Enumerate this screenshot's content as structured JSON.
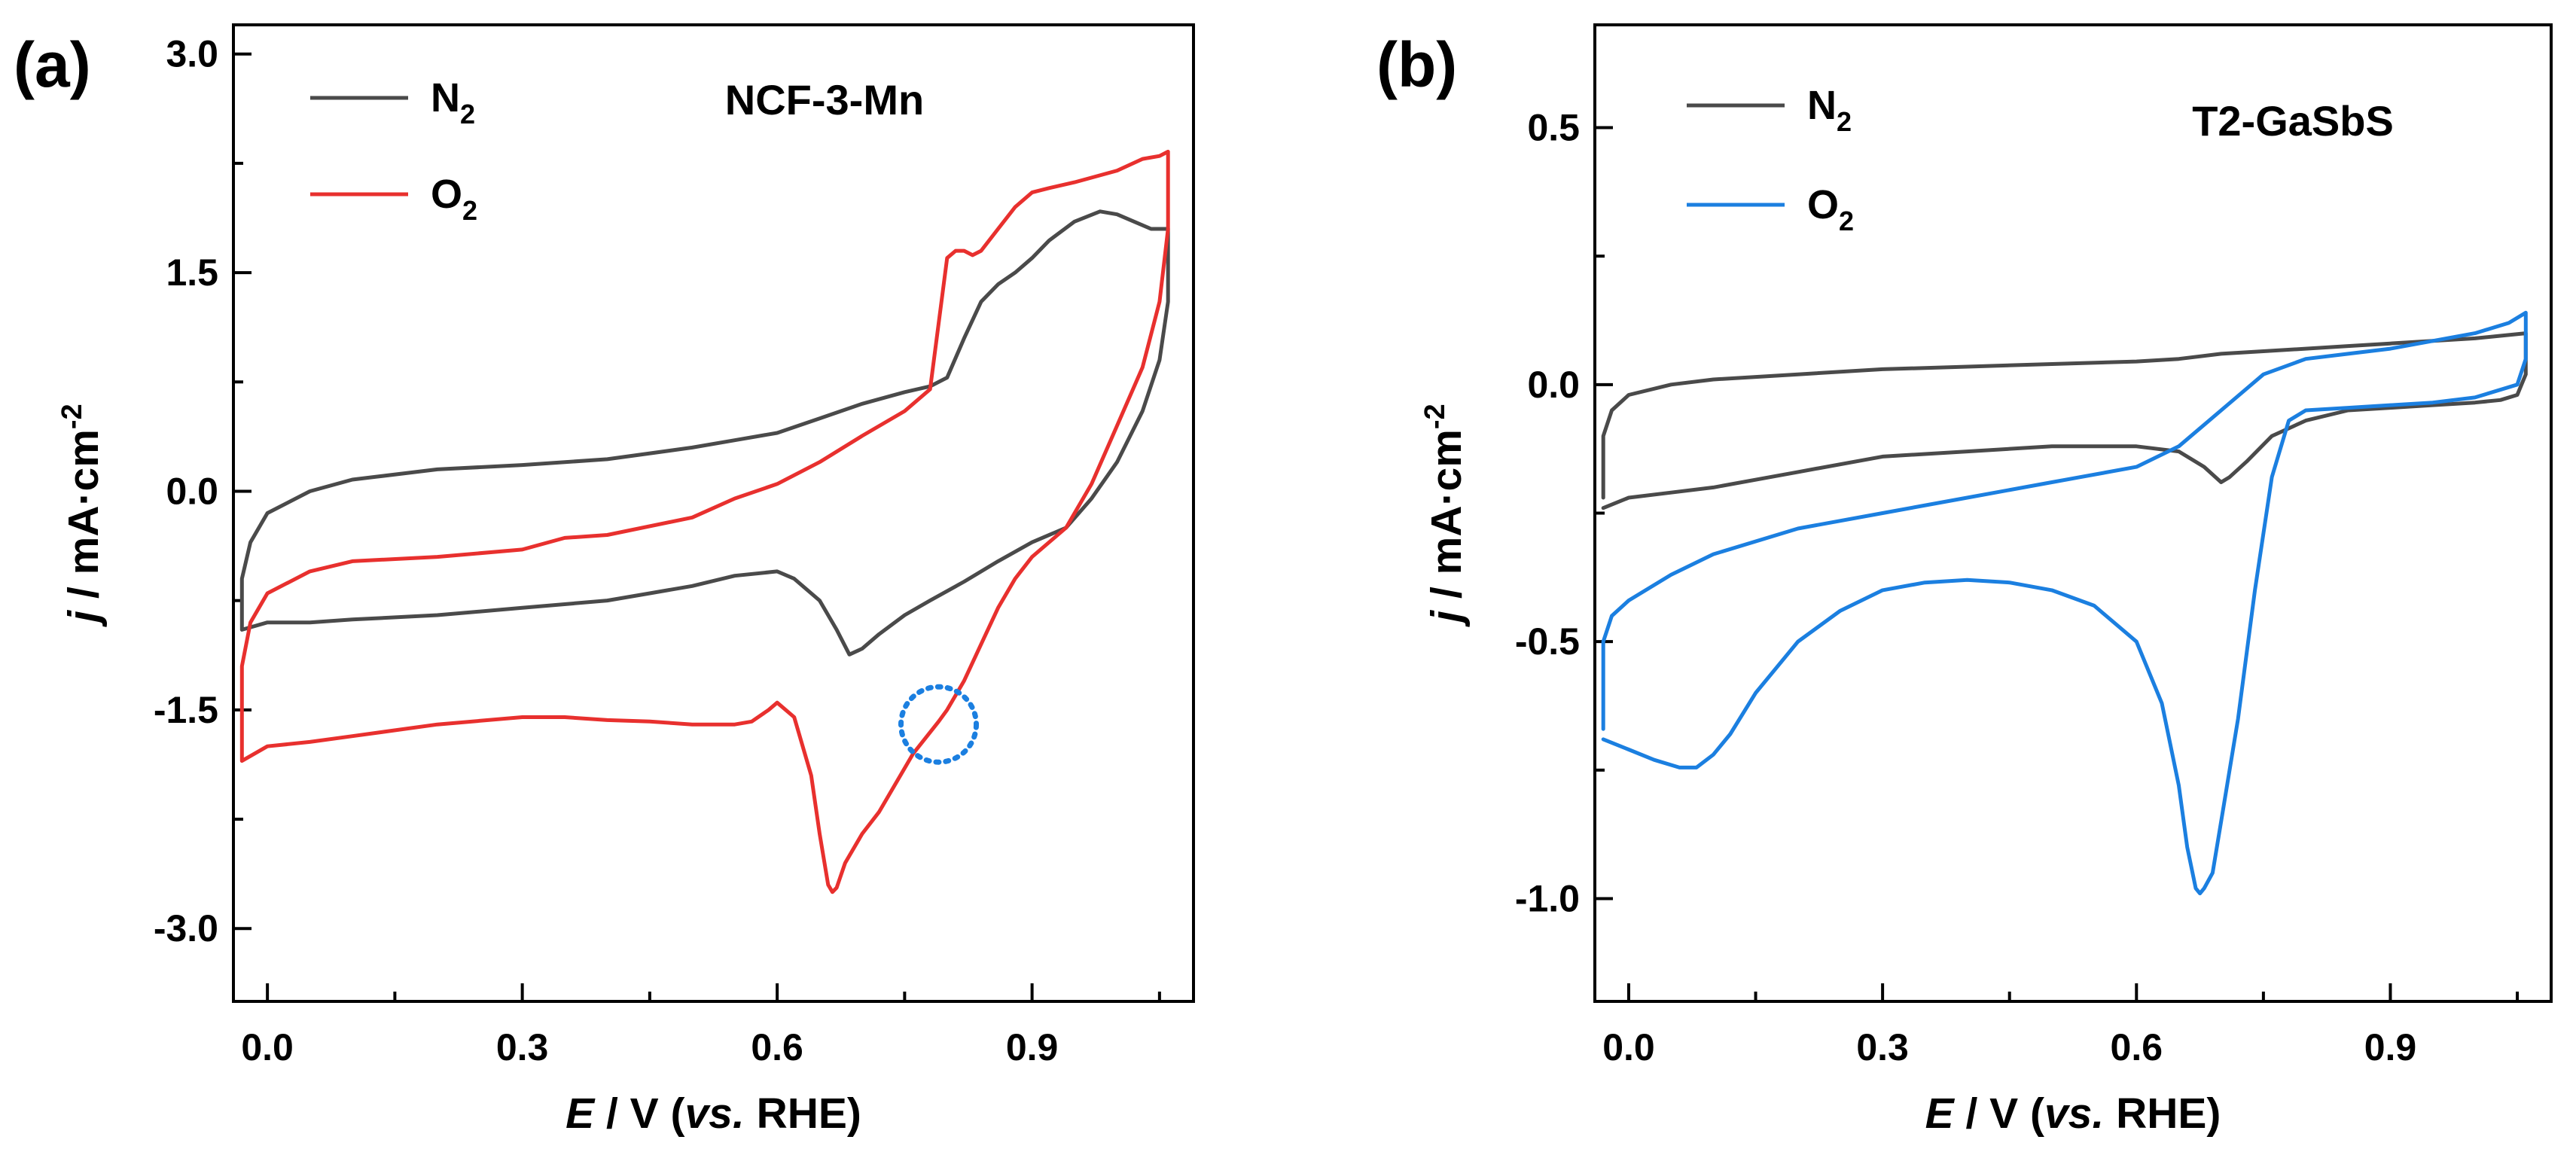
{
  "colors": {
    "n2": "#4a4a4a",
    "o2_a": "#e8302e",
    "o2_b": "#1b7fe0",
    "marker": "#1b7fe0",
    "axis": "#000000"
  },
  "chart_data": [
    {
      "type": "line",
      "panel_label": "(a)",
      "title": "NCF-3-Mn",
      "xlabel": {
        "italic": "E",
        "rest1": " / V (",
        "italic2": "vs.",
        "rest2": " RHE)"
      },
      "ylabel": {
        "italic": "j",
        "rest": " / mA·cm",
        "sup": "-2"
      },
      "xlim": [
        -0.04,
        1.09
      ],
      "ylim": [
        -3.5,
        3.2
      ],
      "xticks": [
        0.0,
        0.3,
        0.6,
        0.9
      ],
      "xtick_labels": [
        "0.0",
        "0.3",
        "0.6",
        "0.9"
      ],
      "yticks": [
        -3.0,
        -1.5,
        0.0,
        1.5,
        3.0
      ],
      "ytick_labels": [
        "-3.0",
        "-1.5",
        "0.0",
        "1.5",
        "3.0"
      ],
      "legend_position": "top-left",
      "annotation": {
        "type": "dotted-circle",
        "x": 0.79,
        "y": -1.6
      },
      "series": [
        {
          "name": "N2",
          "legend_main": "N",
          "legend_sub": "2",
          "color_key": "n2",
          "x": [
            -0.03,
            -0.03,
            -0.02,
            0.0,
            0.05,
            0.1,
            0.2,
            0.3,
            0.4,
            0.5,
            0.55,
            0.6,
            0.65,
            0.7,
            0.75,
            0.78,
            0.8,
            0.82,
            0.84,
            0.86,
            0.88,
            0.9,
            0.92,
            0.95,
            0.98,
            1.0,
            1.02,
            1.04,
            1.06,
            1.06,
            1.05,
            1.03,
            1.0,
            0.97,
            0.94,
            0.9,
            0.86,
            0.82,
            0.78,
            0.75,
            0.72,
            0.7,
            0.685,
            0.67,
            0.65,
            0.62,
            0.6,
            0.55,
            0.5,
            0.45,
            0.4,
            0.3,
            0.2,
            0.1,
            0.05,
            0.0,
            -0.03
          ],
          "y": [
            -0.95,
            -0.6,
            -0.35,
            -0.15,
            0.0,
            0.08,
            0.15,
            0.18,
            0.22,
            0.3,
            0.35,
            0.4,
            0.5,
            0.6,
            0.68,
            0.72,
            0.78,
            1.05,
            1.3,
            1.42,
            1.5,
            1.6,
            1.72,
            1.85,
            1.92,
            1.9,
            1.85,
            1.8,
            1.8,
            1.3,
            0.9,
            0.55,
            0.2,
            -0.05,
            -0.25,
            -0.35,
            -0.48,
            -0.62,
            -0.75,
            -0.85,
            -0.98,
            -1.08,
            -1.12,
            -0.95,
            -0.75,
            -0.6,
            -0.55,
            -0.58,
            -0.65,
            -0.7,
            -0.75,
            -0.8,
            -0.85,
            -0.88,
            -0.9,
            -0.9,
            -0.95
          ]
        },
        {
          "name": "O2",
          "legend_main": "O",
          "legend_sub": "2",
          "color_key": "o2_a",
          "x": [
            -0.03,
            -0.03,
            -0.02,
            0.0,
            0.05,
            0.1,
            0.2,
            0.3,
            0.35,
            0.4,
            0.5,
            0.55,
            0.6,
            0.65,
            0.7,
            0.75,
            0.78,
            0.8,
            0.81,
            0.82,
            0.83,
            0.84,
            0.86,
            0.88,
            0.9,
            0.92,
            0.95,
            1.0,
            1.03,
            1.05,
            1.06,
            1.06,
            1.05,
            1.03,
            1.0,
            0.97,
            0.94,
            0.9,
            0.88,
            0.86,
            0.84,
            0.82,
            0.8,
            0.79,
            0.76,
            0.72,
            0.7,
            0.68,
            0.67,
            0.665,
            0.66,
            0.65,
            0.64,
            0.62,
            0.6,
            0.59,
            0.57,
            0.55,
            0.5,
            0.45,
            0.4,
            0.35,
            0.3,
            0.2,
            0.1,
            0.05,
            0.0,
            -0.03
          ],
          "y": [
            -1.85,
            -1.2,
            -0.9,
            -0.7,
            -0.55,
            -0.48,
            -0.45,
            -0.4,
            -0.32,
            -0.3,
            -0.18,
            -0.05,
            0.05,
            0.2,
            0.38,
            0.55,
            0.7,
            1.6,
            1.65,
            1.65,
            1.62,
            1.65,
            1.8,
            1.95,
            2.05,
            2.08,
            2.12,
            2.2,
            2.28,
            2.3,
            2.33,
            1.8,
            1.3,
            0.85,
            0.45,
            0.05,
            -0.25,
            -0.45,
            -0.6,
            -0.8,
            -1.05,
            -1.3,
            -1.5,
            -1.58,
            -1.8,
            -2.2,
            -2.35,
            -2.55,
            -2.72,
            -2.75,
            -2.7,
            -2.35,
            -1.95,
            -1.55,
            -1.45,
            -1.5,
            -1.58,
            -1.6,
            -1.6,
            -1.58,
            -1.57,
            -1.55,
            -1.55,
            -1.6,
            -1.68,
            -1.72,
            -1.75,
            -1.85
          ]
        }
      ]
    },
    {
      "type": "line",
      "panel_label": "(b)",
      "title": "T2-GaSbS",
      "xlabel": {
        "italic": "E",
        "rest1": " / V (",
        "italic2": "vs.",
        "rest2": " RHE)"
      },
      "ylabel": {
        "italic": "j",
        "rest": " / mA·cm",
        "sup": "-2"
      },
      "xlim": [
        -0.04,
        1.09
      ],
      "ylim": [
        -1.2,
        0.7
      ],
      "xticks": [
        0.0,
        0.3,
        0.6,
        0.9
      ],
      "xtick_labels": [
        "0.0",
        "0.3",
        "0.6",
        "0.9"
      ],
      "yticks": [
        -1.0,
        -0.5,
        0.0,
        0.5
      ],
      "ytick_labels": [
        "-1.0",
        "-0.5",
        "0.0",
        "0.5"
      ],
      "legend_position": "top-left",
      "series": [
        {
          "name": "N2",
          "legend_main": "N",
          "legend_sub": "2",
          "color_key": "n2",
          "x": [
            -0.03,
            -0.03,
            -0.02,
            0.0,
            0.05,
            0.1,
            0.2,
            0.3,
            0.4,
            0.5,
            0.6,
            0.65,
            0.7,
            0.75,
            0.8,
            0.85,
            0.9,
            0.95,
            1.0,
            1.03,
            1.06,
            1.06,
            1.05,
            1.03,
            1.0,
            0.95,
            0.9,
            0.85,
            0.8,
            0.76,
            0.73,
            0.71,
            0.7,
            0.68,
            0.65,
            0.6,
            0.5,
            0.4,
            0.3,
            0.2,
            0.1,
            0.05,
            0.0,
            -0.03
          ],
          "y": [
            -0.22,
            -0.1,
            -0.05,
            -0.02,
            0.0,
            0.01,
            0.02,
            0.03,
            0.035,
            0.04,
            0.045,
            0.05,
            0.06,
            0.065,
            0.07,
            0.075,
            0.08,
            0.085,
            0.09,
            0.095,
            0.1,
            0.02,
            -0.02,
            -0.03,
            -0.035,
            -0.04,
            -0.045,
            -0.05,
            -0.07,
            -0.1,
            -0.15,
            -0.18,
            -0.19,
            -0.16,
            -0.13,
            -0.12,
            -0.12,
            -0.13,
            -0.14,
            -0.17,
            -0.2,
            -0.21,
            -0.22,
            -0.24
          ]
        },
        {
          "name": "O2",
          "legend_main": "O",
          "legend_sub": "2",
          "color_key": "o2_b",
          "x": [
            -0.03,
            -0.03,
            -0.02,
            0.0,
            0.05,
            0.1,
            0.2,
            0.3,
            0.4,
            0.5,
            0.6,
            0.65,
            0.7,
            0.75,
            0.8,
            0.85,
            0.9,
            0.95,
            1.0,
            1.04,
            1.06,
            1.06,
            1.05,
            1.0,
            0.95,
            0.9,
            0.85,
            0.8,
            0.78,
            0.76,
            0.74,
            0.72,
            0.7,
            0.69,
            0.68,
            0.675,
            0.67,
            0.66,
            0.65,
            0.63,
            0.6,
            0.55,
            0.5,
            0.45,
            0.4,
            0.35,
            0.3,
            0.25,
            0.2,
            0.15,
            0.12,
            0.1,
            0.08,
            0.06,
            0.03,
            0.0,
            -0.03
          ],
          "y": [
            -0.67,
            -0.5,
            -0.45,
            -0.42,
            -0.37,
            -0.33,
            -0.28,
            -0.25,
            -0.22,
            -0.19,
            -0.16,
            -0.12,
            -0.05,
            0.02,
            0.05,
            0.06,
            0.07,
            0.085,
            0.1,
            0.12,
            0.14,
            0.05,
            0.0,
            -0.025,
            -0.035,
            -0.04,
            -0.045,
            -0.05,
            -0.07,
            -0.18,
            -0.4,
            -0.65,
            -0.85,
            -0.95,
            -0.98,
            -0.99,
            -0.98,
            -0.9,
            -0.78,
            -0.62,
            -0.5,
            -0.43,
            -0.4,
            -0.385,
            -0.38,
            -0.385,
            -0.4,
            -0.44,
            -0.5,
            -0.6,
            -0.68,
            -0.72,
            -0.745,
            -0.745,
            -0.73,
            -0.71,
            -0.69
          ]
        }
      ]
    }
  ]
}
